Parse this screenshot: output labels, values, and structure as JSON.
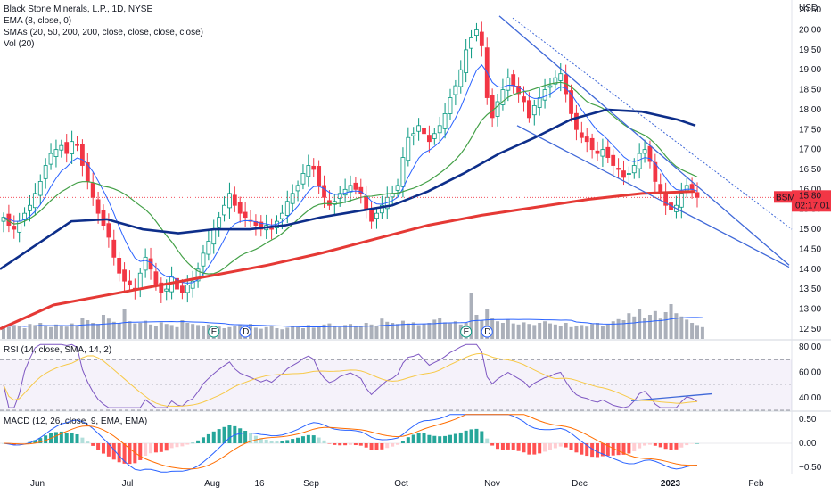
{
  "chart_data": [
    {
      "type": "candlestick",
      "title": "Black Stone Minerals, L.P., 1D, NYSE",
      "legend": [
        "EMA (8, close, 0)",
        "SMAs (20, 50, 200, 200, close, close, close, close)",
        "Vol (20)"
      ],
      "currency": "USD",
      "ylim": [
        12.25,
        20.75
      ],
      "y_ticks": [
        12.5,
        13.0,
        13.5,
        14.0,
        14.5,
        15.0,
        15.5,
        16.0,
        16.5,
        17.0,
        17.5,
        18.0,
        18.5,
        19.0,
        19.5,
        20.0,
        20.5
      ],
      "y_tick_labels": [
        "12.50",
        "13.00",
        "13.50",
        "14.00",
        "14.50",
        "15.00",
        "15.50",
        "16.00",
        "16.50",
        "17.00",
        "17.50",
        "18.00",
        "18.50",
        "19.00",
        "19.50",
        "20.00",
        "20.50"
      ],
      "last_price": {
        "symbol": "BSM",
        "value": "15.80",
        "countdown": "02:17:01"
      },
      "closes": [
        15.3,
        15.1,
        15.0,
        15.2,
        15.4,
        15.6,
        15.9,
        16.2,
        16.6,
        16.9,
        17.0,
        17.1,
        16.9,
        17.2,
        17.1,
        16.6,
        16.2,
        15.8,
        15.4,
        15.1,
        14.8,
        14.3,
        13.9,
        13.7,
        13.6,
        13.5,
        13.9,
        14.3,
        14.0,
        13.6,
        13.4,
        13.5,
        13.8,
        13.5,
        13.4,
        13.6,
        13.7,
        14.0,
        14.4,
        14.7,
        15.0,
        15.3,
        15.6,
        15.9,
        15.6,
        15.4,
        15.3,
        15.2,
        15.1,
        15.0,
        15.1,
        15.0,
        15.2,
        15.4,
        15.7,
        15.9,
        16.1,
        16.4,
        16.6,
        16.5,
        16.1,
        15.8,
        15.6,
        15.7,
        15.9,
        16.0,
        16.1,
        16.0,
        15.9,
        15.5,
        15.2,
        15.4,
        15.6,
        15.8,
        15.9,
        16.1,
        16.8,
        17.3,
        17.4,
        17.6,
        17.4,
        17.2,
        17.4,
        17.6,
        17.9,
        18.3,
        18.6,
        19.0,
        19.5,
        19.8,
        20.0,
        19.6,
        18.3,
        17.8,
        18.2,
        18.5,
        18.8,
        18.6,
        18.4,
        18.2,
        17.8,
        18.1,
        18.3,
        18.5,
        18.6,
        18.8,
        18.9,
        18.4,
        17.9,
        17.5,
        17.3,
        17.2,
        17.0,
        16.9,
        17.0,
        16.8,
        16.6,
        16.5,
        16.3,
        16.4,
        16.6,
        16.9,
        17.0,
        16.7,
        16.2,
        15.9,
        15.6,
        15.5,
        15.6,
        15.9,
        16.1,
        16.0,
        15.8
      ],
      "volume": [
        0.25,
        0.22,
        0.26,
        0.24,
        0.2,
        0.28,
        0.26,
        0.3,
        0.24,
        0.22,
        0.27,
        0.25,
        0.23,
        0.29,
        0.26,
        0.4,
        0.35,
        0.3,
        0.28,
        0.45,
        0.38,
        0.32,
        0.3,
        0.55,
        0.33,
        0.29,
        0.3,
        0.34,
        0.27,
        0.24,
        0.31,
        0.28,
        0.26,
        0.22,
        0.35,
        0.3,
        0.28,
        0.26,
        0.24,
        0.27,
        0.25,
        0.23,
        0.2,
        0.22,
        0.24,
        0.26,
        0.23,
        0.28,
        0.21,
        0.19,
        0.22,
        0.24,
        0.2,
        0.18,
        0.21,
        0.23,
        0.22,
        0.2,
        0.26,
        0.21,
        0.25,
        0.27,
        0.29,
        0.24,
        0.22,
        0.26,
        0.28,
        0.25,
        0.23,
        0.3,
        0.27,
        0.25,
        0.38,
        0.32,
        0.3,
        0.28,
        0.34,
        0.29,
        0.31,
        0.26,
        0.28,
        0.3,
        0.36,
        0.4,
        0.31,
        0.29,
        0.33,
        0.27,
        0.3,
        0.85,
        0.45,
        0.35,
        0.55,
        0.4,
        0.33,
        0.3,
        0.36,
        0.29,
        0.27,
        0.31,
        0.28,
        0.26,
        0.3,
        0.33,
        0.29,
        0.27,
        0.25,
        0.3,
        0.22,
        0.24,
        0.26,
        0.23,
        0.28,
        0.3,
        0.25,
        0.27,
        0.33,
        0.37,
        0.35,
        0.48,
        0.42,
        0.55,
        0.4,
        0.45,
        0.52,
        0.38,
        0.5,
        0.65,
        0.48,
        0.42,
        0.36,
        0.3,
        0.26,
        0.22
      ],
      "sma200": [
        [
          0,
          12.5
        ],
        [
          60,
          13.1
        ],
        [
          120,
          13.35
        ],
        [
          180,
          13.6
        ],
        [
          240,
          13.85
        ],
        [
          300,
          14.1
        ],
        [
          360,
          14.4
        ],
        [
          420,
          14.75
        ],
        [
          480,
          15.1
        ],
        [
          540,
          15.35
        ],
        [
          600,
          15.55
        ],
        [
          660,
          15.75
        ],
        [
          720,
          15.9
        ],
        [
          780,
          15.95
        ]
      ],
      "sma50": [
        [
          0,
          14.0
        ],
        [
          40,
          14.6
        ],
        [
          80,
          15.2
        ],
        [
          120,
          15.25
        ],
        [
          160,
          15.0
        ],
        [
          200,
          14.9
        ],
        [
          240,
          15.0
        ],
        [
          280,
          15.0
        ],
        [
          320,
          15.1
        ],
        [
          360,
          15.3
        ],
        [
          400,
          15.45
        ],
        [
          440,
          15.6
        ],
        [
          480,
          15.95
        ],
        [
          520,
          16.4
        ],
        [
          560,
          16.9
        ],
        [
          600,
          17.3
        ],
        [
          640,
          17.75
        ],
        [
          680,
          18.0
        ],
        [
          720,
          17.95
        ],
        [
          760,
          17.75
        ],
        [
          780,
          17.6
        ]
      ],
      "trendlines": [
        {
          "from": [
            560,
            20.35
          ],
          "to": [
            885,
            14.1
          ]
        },
        {
          "from": [
            580,
            17.6
          ],
          "to": [
            885,
            14.05
          ]
        },
        {
          "from": [
            575,
            20.3
          ],
          "to": [
            888,
            15.0
          ],
          "style": "dotted"
        }
      ],
      "events": [
        {
          "index": 40,
          "label": "E"
        },
        {
          "index": 46,
          "label": "D"
        },
        {
          "index": 88,
          "label": "E"
        },
        {
          "index": 92,
          "label": "D"
        }
      ]
    },
    {
      "type": "line",
      "title": "RSI (14, close, SMA, 14, 2)",
      "ylim": [
        30,
        85
      ],
      "y_tick_labels": [
        "80.00",
        "60.00",
        "40.00"
      ],
      "y_ticks": [
        80,
        60,
        40
      ],
      "bands": [
        70,
        30
      ],
      "trendline": {
        "from": [
          708,
          37.5
        ],
        "to": [
          798,
          43
        ]
      }
    },
    {
      "type": "histogram",
      "title": "MACD (12, 26, close, 9, EMA, EMA)",
      "ylim": [
        -0.65,
        0.65
      ],
      "y_tick_labels": [
        "0.50",
        "0.00",
        "−0.50"
      ],
      "y_ticks": [
        0.5,
        0.0,
        -0.5
      ]
    }
  ],
  "time_axis": [
    "Jun",
    "Jul",
    "Aug",
    "16",
    "Sep",
    "Oct",
    "Nov",
    "Dec",
    "2023",
    "Feb"
  ],
  "colors": {
    "bull": "#089981",
    "bear": "#f23645",
    "ema": "#2962ff",
    "sma20": "#43a047",
    "sma50": "#0d2e8a",
    "sma200": "#e53935",
    "trend": "#3f68d8",
    "volume": "#8f95a3",
    "rsi": "#7e57c2",
    "macd": "#2962ff",
    "signal": "#ff6d00"
  }
}
